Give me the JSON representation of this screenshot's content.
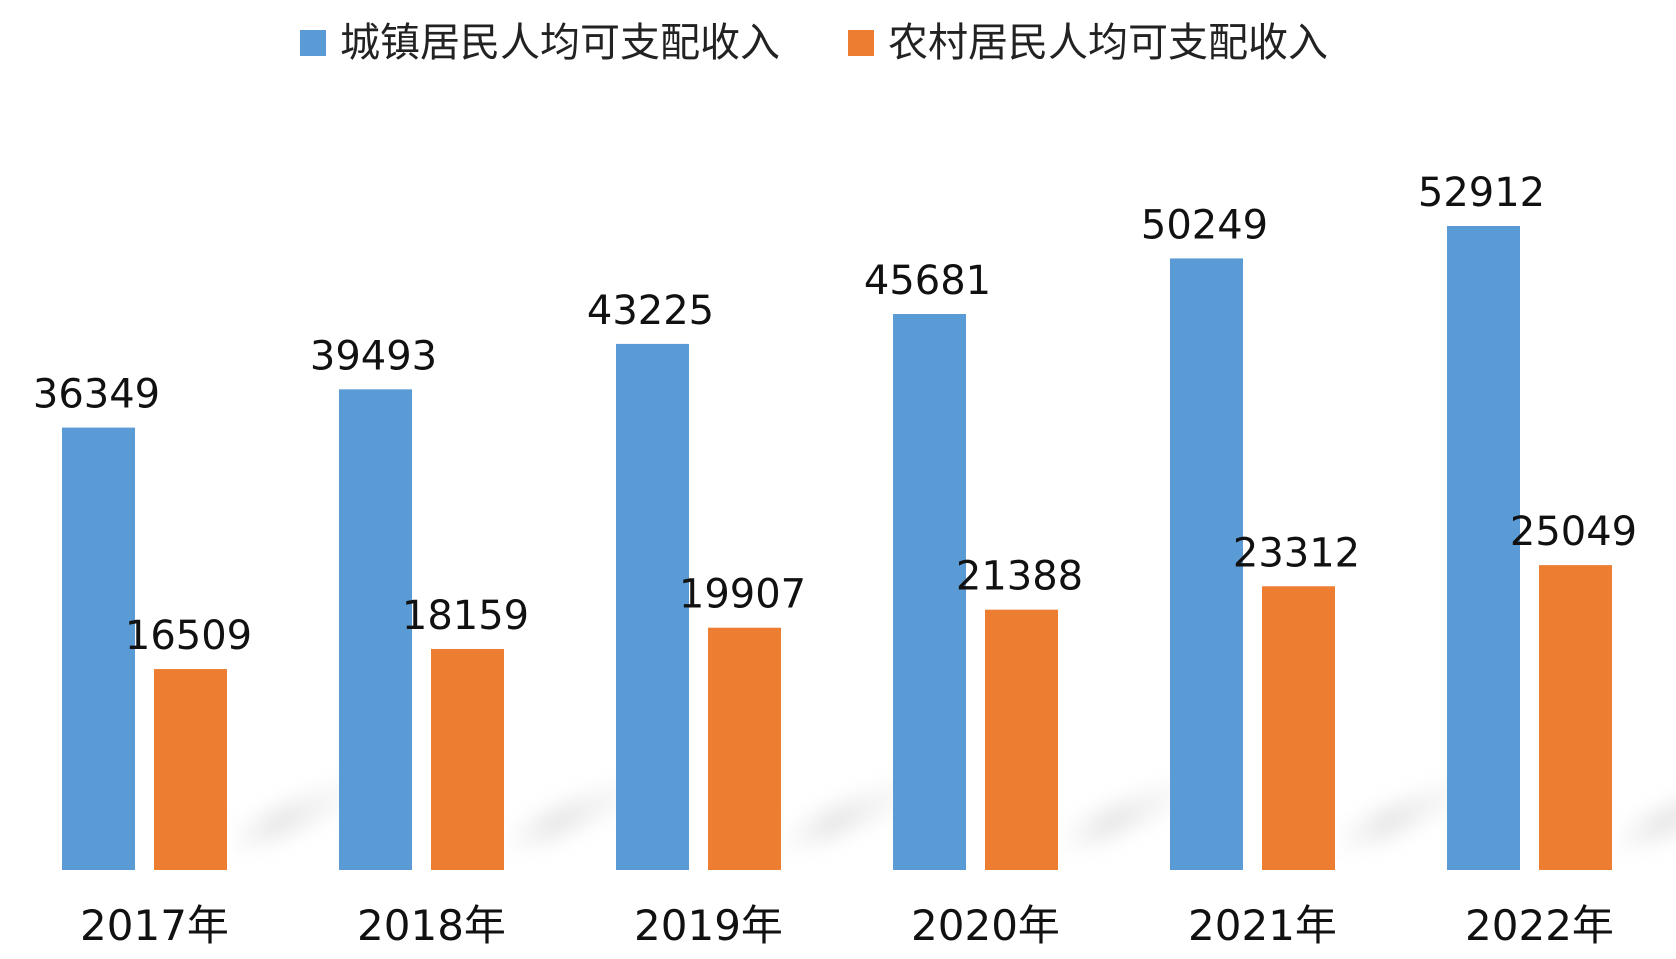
{
  "chart_data": {
    "type": "bar",
    "categories": [
      "2017年",
      "2018年",
      "2019年",
      "2020年",
      "2021年",
      "2022年"
    ],
    "series": [
      {
        "name": "城镇居民人均可支配收入",
        "color": "#5b9bd5",
        "values": [
          36349,
          39493,
          43225,
          45681,
          50249,
          52912
        ]
      },
      {
        "name": "农村居民人均可支配收入",
        "color": "#ed7d31",
        "values": [
          16509,
          18159,
          19907,
          21388,
          23312,
          25049
        ]
      }
    ],
    "ylim": [
      0,
      60000
    ],
    "grid": false,
    "legend_position": "top-center",
    "data_labels": true
  }
}
